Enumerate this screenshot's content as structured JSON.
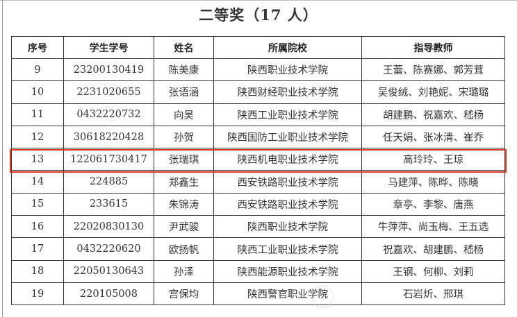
{
  "title": "二等奖（17 人）",
  "table": {
    "headers": [
      "序号",
      "学生学号",
      "姓名",
      "所属院校",
      "指导教师"
    ],
    "rows": [
      [
        "9",
        "23200130419",
        "陈美康",
        "陕西职业技术学院",
        "王蕾、陈赛娜、郭芳茸"
      ],
      [
        "10",
        "2231020655",
        "张语涵",
        "陕西财经职业技术学院",
        "吴俊绒、刘艳妮、宋璐璐"
      ],
      [
        "11",
        "0432220732",
        "向昊",
        "陕西工业职业技术学院",
        "胡建鹏、祝嘉欢、嵇杨"
      ],
      [
        "12",
        "30618220428",
        "孙贺",
        "陕西国防工业职业技术学院",
        "任天娟、张冰清、崔乔"
      ],
      [
        "13",
        "122061730417",
        "张瑞琪",
        "陕西机电职业技术学院",
        "高玲玲、王琼"
      ],
      [
        "14",
        "224885",
        "郑鑫生",
        "西安铁路职业技术学院",
        "马建萍、陈晔、陈晓"
      ],
      [
        "15",
        "233615",
        "朱锦涛",
        "西安铁路职业技术学院",
        "章亭、李黎、唐燕"
      ],
      [
        "16",
        "22020830130",
        "尹武骏",
        "陕西职业技术学院",
        "牛萍萍、尚玉梅、王五选"
      ],
      [
        "17",
        "0432220620",
        "欧扬帆",
        "陕西工业职业技术学院",
        "祝嘉欢、胡建鹏、嵇杨"
      ],
      [
        "18",
        "22050130643",
        "孙泽",
        "陕西能源职业技术学院",
        "王钢、何柳、刘莉"
      ],
      [
        "19",
        "220105008",
        "宫保均",
        "陕西警官职业学院",
        "石岩炘、邢琪"
      ]
    ]
  },
  "highlight_color": "#e03a1e"
}
